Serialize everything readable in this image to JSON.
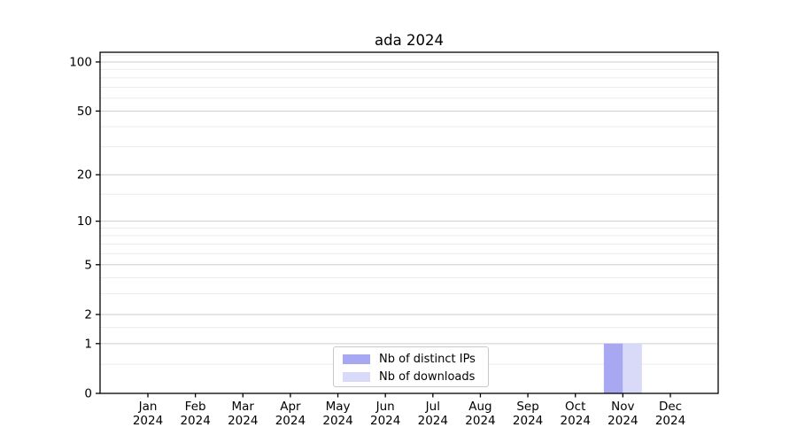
{
  "chart_data": {
    "type": "bar",
    "title": "ada 2024",
    "categories": [
      "Jan 2024",
      "Feb 2024",
      "Mar 2024",
      "Apr 2024",
      "May 2024",
      "Jun 2024",
      "Jul 2024",
      "Aug 2024",
      "Sep 2024",
      "Oct 2024",
      "Nov 2024",
      "Dec 2024"
    ],
    "series": [
      {
        "name": "Nb of distinct IPs",
        "color": "#a8a8f2",
        "values": [
          0,
          0,
          0,
          0,
          0,
          0,
          0,
          0,
          0,
          0,
          1,
          0
        ]
      },
      {
        "name": "Nb of downloads",
        "color": "#d9d9f8",
        "values": [
          0,
          0,
          0,
          0,
          0,
          0,
          0,
          0,
          0,
          0,
          1,
          0
        ]
      }
    ],
    "xlabel": "",
    "ylabel": "",
    "y_axis": {
      "scale": "log1p",
      "ticks": [
        0,
        1,
        2,
        5,
        10,
        20,
        50,
        100
      ],
      "minor_gridlines": [
        0.5,
        1.5,
        3,
        4,
        6,
        7,
        8,
        9,
        15,
        30,
        40,
        60,
        70,
        80,
        90,
        110
      ],
      "max": 114.6
    },
    "grid": true,
    "legend_position": "lower center",
    "colors": {
      "axis": "#000000",
      "major_grid": "#cdcdcd",
      "minor_grid": "#ececec",
      "tick_label": "#000000"
    }
  }
}
